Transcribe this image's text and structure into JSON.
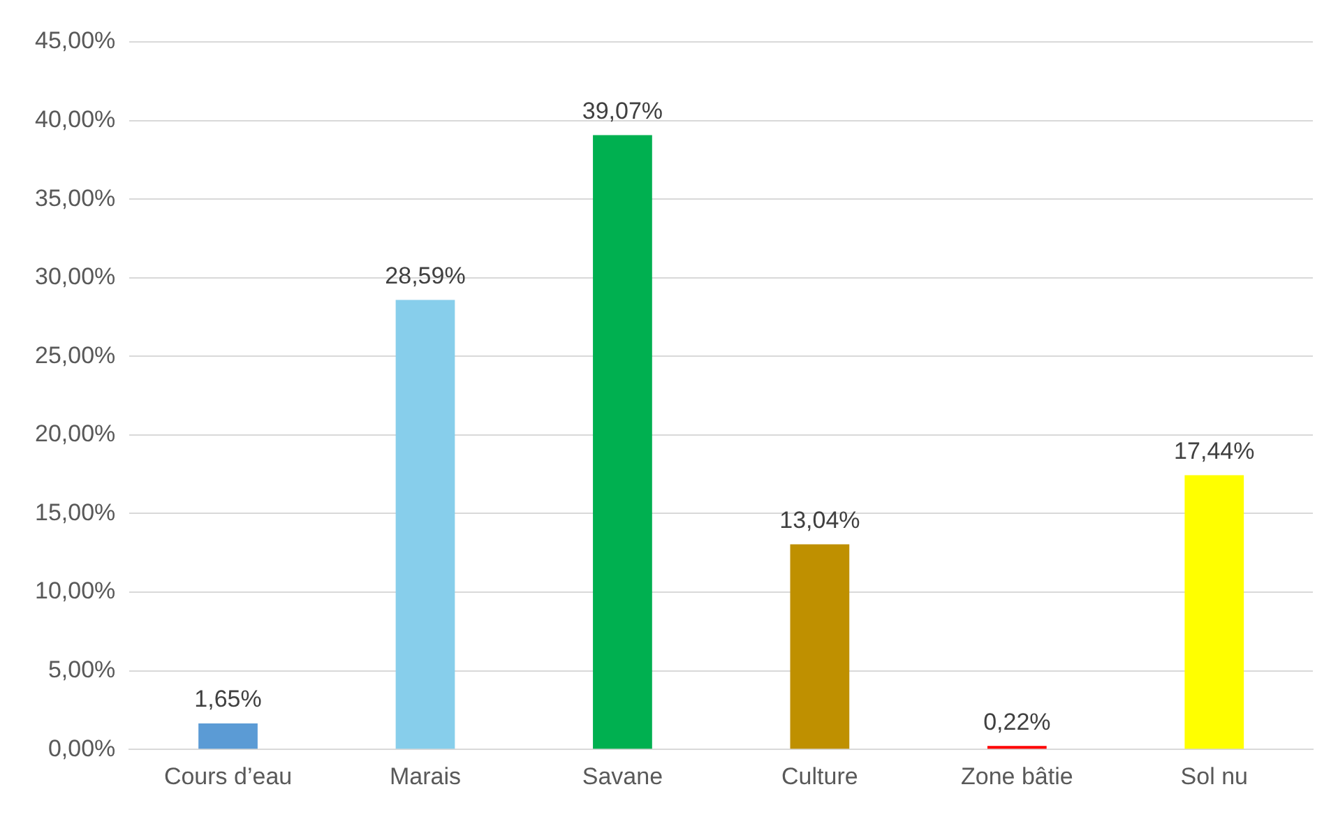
{
  "chart_data": {
    "type": "bar",
    "categories": [
      "Cours d’eau",
      "Marais",
      "Savane",
      "Culture",
      "Zone bâtie",
      "Sol nu"
    ],
    "values": [
      1.65,
      28.59,
      39.07,
      13.04,
      0.22,
      17.44
    ],
    "colors": [
      "#5b9bd5",
      "#87ceeb",
      "#00b050",
      "#bf9000",
      "#ff0000",
      "#ffff00"
    ],
    "value_labels": [
      "1,65%",
      "28,59%",
      "39,07%",
      "13,04%",
      "0,22%",
      "17,44%"
    ],
    "ylim": [
      0,
      45
    ],
    "yticks": [
      {
        "value": 0,
        "label": "0,00%"
      },
      {
        "value": 5,
        "label": "5,00%"
      },
      {
        "value": 10,
        "label": "10,00%"
      },
      {
        "value": 15,
        "label": "15,00%"
      },
      {
        "value": 20,
        "label": "20,00%"
      },
      {
        "value": 25,
        "label": "25,00%"
      },
      {
        "value": 30,
        "label": "30,00%"
      },
      {
        "value": 35,
        "label": "35,00%"
      },
      {
        "value": 40,
        "label": "40,00%"
      },
      {
        "value": 45,
        "label": "45,00%"
      }
    ],
    "grid": "y"
  }
}
